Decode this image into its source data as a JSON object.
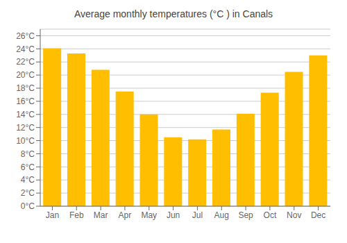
{
  "chart_data": {
    "type": "bar",
    "title": "Average monthly temperatures (°C ) in Canals",
    "categories": [
      "Jan",
      "Feb",
      "Mar",
      "Apr",
      "May",
      "Jun",
      "Jul",
      "Aug",
      "Sep",
      "Oct",
      "Nov",
      "Dec"
    ],
    "values": [
      24.1,
      23.3,
      20.8,
      17.5,
      14.0,
      10.5,
      10.2,
      11.7,
      14.1,
      17.3,
      20.5,
      23.0
    ],
    "color": "#FFBE00",
    "ylim": [
      0,
      27
    ],
    "yticks": [
      {
        "value": 0,
        "label": "0°C"
      },
      {
        "value": 2,
        "label": "2°C"
      },
      {
        "value": 4,
        "label": "4°C"
      },
      {
        "value": 6,
        "label": "6°C"
      },
      {
        "value": 8,
        "label": "8°C"
      },
      {
        "value": 10,
        "label": "10°C"
      },
      {
        "value": 12,
        "label": "12°C"
      },
      {
        "value": 14,
        "label": "14°C"
      },
      {
        "value": 16,
        "label": "16°C"
      },
      {
        "value": 18,
        "label": "18°C"
      },
      {
        "value": 20,
        "label": "20°C"
      },
      {
        "value": 22,
        "label": "22°C"
      },
      {
        "value": 24,
        "label": "24°C"
      },
      {
        "value": 26,
        "label": "26°C"
      }
    ],
    "grid": true
  }
}
